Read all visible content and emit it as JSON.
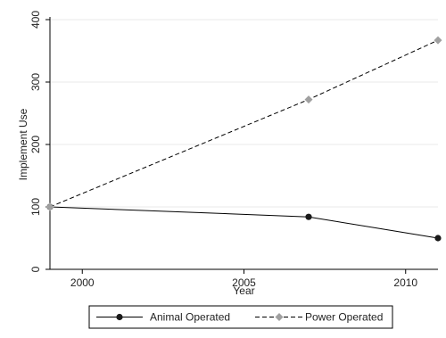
{
  "chart_data": {
    "type": "line",
    "xlabel": "Year",
    "ylabel": "Implement Use",
    "xlim": [
      1999,
      2011
    ],
    "ylim": [
      0,
      400
    ],
    "xticks": [
      2000,
      2005,
      2010
    ],
    "yticks": [
      0,
      100,
      200,
      300,
      400
    ],
    "grid": "horizontal",
    "legend_position": "bottom",
    "series": [
      {
        "name": "Animal Operated",
        "x": [
          1999,
          2007,
          2011
        ],
        "values": [
          100,
          84,
          50
        ],
        "color": "#1a1a1a",
        "line_style": "solid",
        "marker": "circle"
      },
      {
        "name": "Power Operated",
        "x": [
          1999,
          2007,
          2011
        ],
        "values": [
          100,
          272,
          367
        ],
        "color": "#a0a0a0",
        "line_style": "dashed",
        "marker": "diamond"
      }
    ]
  }
}
